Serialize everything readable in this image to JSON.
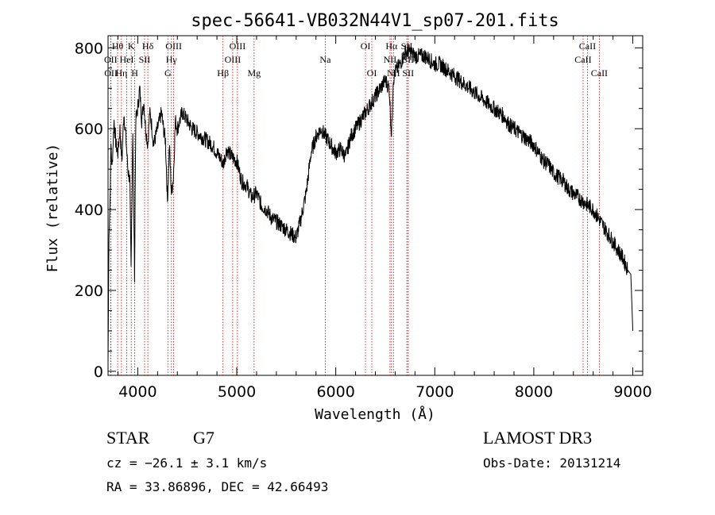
{
  "chart_data": {
    "type": "line",
    "title": "spec-56641-VB032N44V1_sp07-201.fits",
    "xlabel": "Wavelength (Å)",
    "ylabel": "Flux (relative)",
    "xlim": [
      3700,
      9100
    ],
    "ylim": [
      -10,
      830
    ],
    "x_ticks": [
      4000,
      5000,
      6000,
      7000,
      8000,
      9000
    ],
    "y_ticks": [
      0,
      200,
      400,
      600,
      800
    ],
    "x_tick_labels": [
      "4000",
      "5000",
      "6000",
      "7000",
      "8000",
      "9000"
    ],
    "y_tick_labels": [
      "0",
      "200",
      "400",
      "600",
      "800"
    ],
    "series": [
      {
        "name": "flux",
        "x": [
          3700,
          3710,
          3720,
          3730,
          3740,
          3760,
          3780,
          3800,
          3820,
          3840,
          3860,
          3880,
          3900,
          3920,
          3933,
          3950,
          3968,
          3980,
          4000,
          4020,
          4040,
          4060,
          4080,
          4102,
          4120,
          4140,
          4160,
          4180,
          4200,
          4220,
          4240,
          4260,
          4280,
          4300,
          4320,
          4340,
          4360,
          4380,
          4400,
          4450,
          4500,
          4550,
          4600,
          4650,
          4700,
          4750,
          4800,
          4850,
          4861,
          4900,
          4950,
          5000,
          5050,
          5100,
          5150,
          5200,
          5250,
          5300,
          5350,
          5400,
          5450,
          5500,
          5550,
          5600,
          5650,
          5700,
          5750,
          5800,
          5850,
          5900,
          5950,
          6000,
          6050,
          6100,
          6150,
          6200,
          6250,
          6300,
          6350,
          6400,
          6450,
          6500,
          6540,
          6563,
          6580,
          6600,
          6650,
          6700,
          6750,
          6800,
          6850,
          6900,
          6950,
          7000,
          7050,
          7100,
          7150,
          7200,
          7250,
          7300,
          7350,
          7400,
          7450,
          7500,
          7550,
          7600,
          7650,
          7700,
          7750,
          7800,
          7850,
          7900,
          7950,
          8000,
          8050,
          8100,
          8150,
          8200,
          8250,
          8300,
          8350,
          8400,
          8450,
          8500,
          8550,
          8600,
          8650,
          8700,
          8750,
          8800,
          8850,
          8900,
          8950,
          8980,
          9000
        ],
        "y": [
          20,
          350,
          420,
          560,
          500,
          620,
          560,
          540,
          600,
          520,
          640,
          580,
          500,
          470,
          250,
          600,
          240,
          620,
          650,
          700,
          620,
          670,
          600,
          560,
          640,
          610,
          560,
          580,
          600,
          620,
          640,
          600,
          570,
          420,
          560,
          440,
          480,
          620,
          600,
          640,
          620,
          600,
          590,
          580,
          570,
          560,
          540,
          520,
          510,
          550,
          530,
          520,
          470,
          460,
          430,
          440,
          410,
          400,
          380,
          370,
          360,
          350,
          340,
          330,
          380,
          440,
          540,
          580,
          600,
          580,
          560,
          540,
          550,
          530,
          580,
          600,
          620,
          640,
          660,
          680,
          700,
          720,
          700,
          580,
          720,
          740,
          760,
          790,
          790,
          780,
          780,
          780,
          770,
          760,
          760,
          750,
          740,
          730,
          720,
          710,
          700,
          690,
          680,
          670,
          660,
          650,
          640,
          630,
          610,
          600,
          590,
          580,
          570,
          560,
          540,
          520,
          510,
          490,
          480,
          470,
          450,
          440,
          430,
          420,
          410,
          400,
          380,
          360,
          340,
          320,
          300,
          280,
          250,
          240,
          100
        ]
      }
    ],
    "lines": [
      {
        "name": "Hθ",
        "wl": 3797,
        "row": 1,
        "color": "#c00000"
      },
      {
        "name": "OII",
        "wl": 3727,
        "row": 2,
        "color": "#c00000"
      },
      {
        "name": "OII",
        "wl": 3729,
        "row": 3,
        "color": "#c00000"
      },
      {
        "name": "Hη",
        "wl": 3835,
        "row": 3,
        "color": "#c00000"
      },
      {
        "name": "K",
        "wl": 3934,
        "row": 1,
        "color": "#c00000"
      },
      {
        "name": "HeI",
        "wl": 3889,
        "row": 2,
        "color": "#c00000"
      },
      {
        "name": "H",
        "wl": 3969,
        "row": 3,
        "color": "#c00000"
      },
      {
        "name": "SII",
        "wl": 4069,
        "row": 2,
        "color": "#c00000"
      },
      {
        "name": "Hδ",
        "wl": 4102,
        "row": 1,
        "color": "#c00000"
      },
      {
        "name": "OIII",
        "wl": 4363,
        "row": 1,
        "color": "#c00000"
      },
      {
        "name": "Hγ",
        "wl": 4340,
        "row": 2,
        "color": "#c00000"
      },
      {
        "name": "G",
        "wl": 4304,
        "row": 3,
        "color": "#c00000"
      },
      {
        "name": "Hβ",
        "wl": 4861,
        "row": 3,
        "color": "#c00000"
      },
      {
        "name": "OIII",
        "wl": 5007,
        "row": 1,
        "color": "#c00000"
      },
      {
        "name": "OIII",
        "wl": 4959,
        "row": 2,
        "color": "#c00000"
      },
      {
        "name": "Mg",
        "wl": 5175,
        "row": 3,
        "color": "#c00000"
      },
      {
        "name": "Na",
        "wl": 5894,
        "row": 2,
        "color": "#c00000"
      },
      {
        "name": "OI",
        "wl": 6300,
        "row": 1,
        "color": "#c00000"
      },
      {
        "name": "OI",
        "wl": 6364,
        "row": 3,
        "color": "#c00000"
      },
      {
        "name": "Hα",
        "wl": 6563,
        "row": 1,
        "color": "#c00000"
      },
      {
        "name": "NII",
        "wl": 6548,
        "row": 2,
        "color": "#c00000"
      },
      {
        "name": "NII",
        "wl": 6583,
        "row": 3,
        "color": "#c00000"
      },
      {
        "name": "SII",
        "wl": 6717,
        "row": 1,
        "color": "#c00000"
      },
      {
        "name": "SII",
        "wl": 6731,
        "row": 2,
        "color": "#c00000"
      },
      {
        "name": "SII",
        "wl": 6731,
        "row": 3,
        "color": "#c00000"
      },
      {
        "name": "CaII",
        "wl": 8542,
        "row": 1,
        "color": "#c00000"
      },
      {
        "name": "CaII",
        "wl": 8498,
        "row": 2,
        "color": "#c00000"
      },
      {
        "name": "CaII",
        "wl": 8662,
        "row": 3,
        "color": "#c00000"
      }
    ]
  },
  "info": {
    "class_label": "STAR",
    "subclass": "G7",
    "cz": "cz = −26.1 ± 3.1 km/s",
    "radec": "RA =  33.86896, DEC =  42.66493",
    "survey": "LAMOST DR3",
    "obs_date": "Obs-Date: 20131214"
  }
}
